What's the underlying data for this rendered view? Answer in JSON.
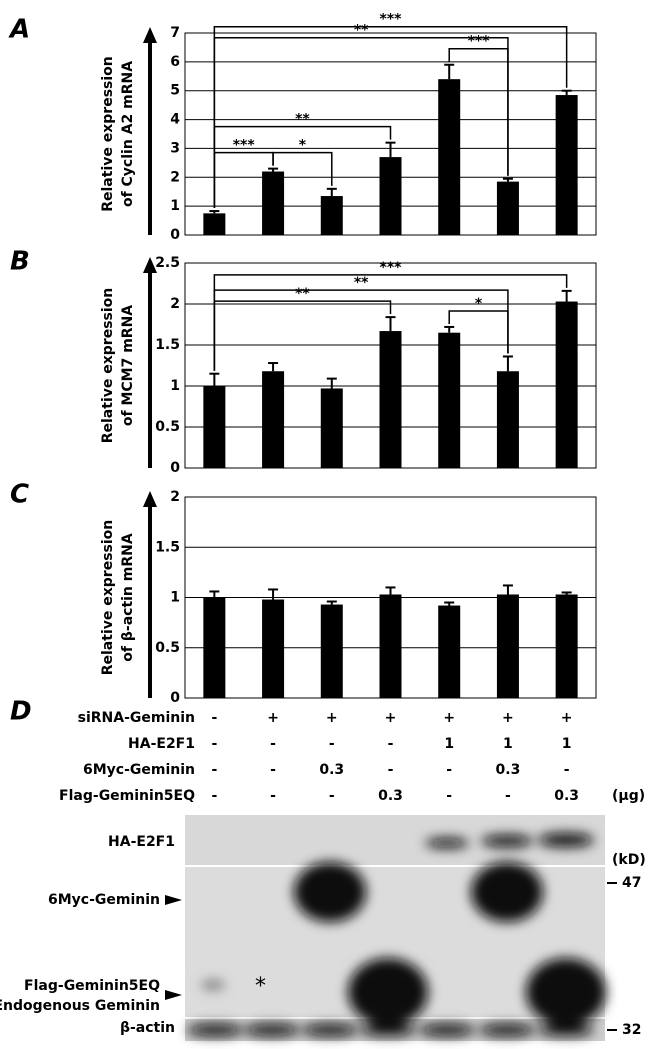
{
  "chart_data": [
    {
      "type": "bar",
      "panel": "A",
      "ylabel": [
        "Relative expression",
        "of Cyclin A2 mRNA"
      ],
      "categories": [
        null,
        null,
        null,
        null,
        null,
        null,
        null
      ],
      "values": [
        0.75,
        2.2,
        1.35,
        2.7,
        5.4,
        1.85,
        4.85
      ],
      "errors": [
        0.08,
        0.1,
        0.25,
        0.5,
        0.5,
        0.1,
        0.15
      ],
      "color": "#000000",
      "ylim": [
        0,
        7
      ],
      "yticks": [
        0,
        1,
        2,
        3,
        4,
        5,
        6,
        7
      ],
      "grid": true,
      "significance": [
        {
          "from": 0,
          "to": 1,
          "label": "***"
        },
        {
          "from": 1,
          "to": 2,
          "label": "*"
        },
        {
          "from": 0,
          "to": 3,
          "label": "**"
        },
        {
          "from": 4,
          "to": 5,
          "label": "***"
        },
        {
          "from": 0,
          "to": 5,
          "label": "**"
        },
        {
          "from": 0,
          "to": 6,
          "label": "***"
        }
      ]
    },
    {
      "type": "bar",
      "panel": "B",
      "ylabel": [
        "Relative expression",
        "of MCM7 mRNA"
      ],
      "categories": [
        null,
        null,
        null,
        null,
        null,
        null,
        null
      ],
      "values": [
        1.0,
        1.18,
        0.97,
        1.67,
        1.65,
        1.18,
        2.03
      ],
      "errors": [
        0.15,
        0.1,
        0.12,
        0.17,
        0.07,
        0.18,
        0.13
      ],
      "color": "#000000",
      "ylim": [
        0,
        2.5
      ],
      "yticks": [
        0,
        0.5,
        1,
        1.5,
        2,
        2.5
      ],
      "grid": true,
      "significance": [
        {
          "from": 0,
          "to": 3,
          "label": "**"
        },
        {
          "from": 4,
          "to": 5,
          "label": "*"
        },
        {
          "from": 0,
          "to": 5,
          "label": "**"
        },
        {
          "from": 0,
          "to": 6,
          "label": "***"
        }
      ]
    },
    {
      "type": "bar",
      "panel": "C",
      "ylabel": [
        "Relative expression",
        "of β-actin mRNA"
      ],
      "categories": [
        null,
        null,
        null,
        null,
        null,
        null,
        null
      ],
      "values": [
        1.0,
        0.98,
        0.93,
        1.03,
        0.92,
        1.03,
        1.03
      ],
      "errors": [
        0.06,
        0.1,
        0.03,
        0.07,
        0.03,
        0.09,
        0.02
      ],
      "color": "#000000",
      "ylim": [
        0,
        2
      ],
      "yticks": [
        0,
        0.5,
        1,
        1.5,
        2
      ],
      "grid": true,
      "significance": []
    }
  ],
  "panel_d": {
    "panel": "D",
    "conditions": [
      {
        "label": "siRNA-Geminin",
        "cells": [
          "-",
          "+",
          "+",
          "+",
          "+",
          "+",
          "+"
        ]
      },
      {
        "label": "HA-E2F1",
        "cells": [
          "-",
          "-",
          "-",
          "-",
          "1",
          "1",
          "1"
        ]
      },
      {
        "label": "6Myc-Geminin",
        "cells": [
          "-",
          "-",
          "0.3",
          "-",
          "-",
          "0.3",
          "-"
        ]
      },
      {
        "label": "Flag-Geminin5EQ",
        "cells": [
          "-",
          "-",
          "-",
          "0.3",
          "-",
          "-",
          "0.3"
        ]
      }
    ],
    "unit": "(μg)",
    "blot": {
      "bands": [
        "HA-E2F1",
        "6Myc-Geminin",
        "Flag-Geminin5EQ",
        "Endogenous Geminin",
        "β-actin"
      ],
      "marker_unit": "(kD)",
      "markers": [
        "47",
        "32"
      ],
      "asterisk": "*"
    }
  }
}
